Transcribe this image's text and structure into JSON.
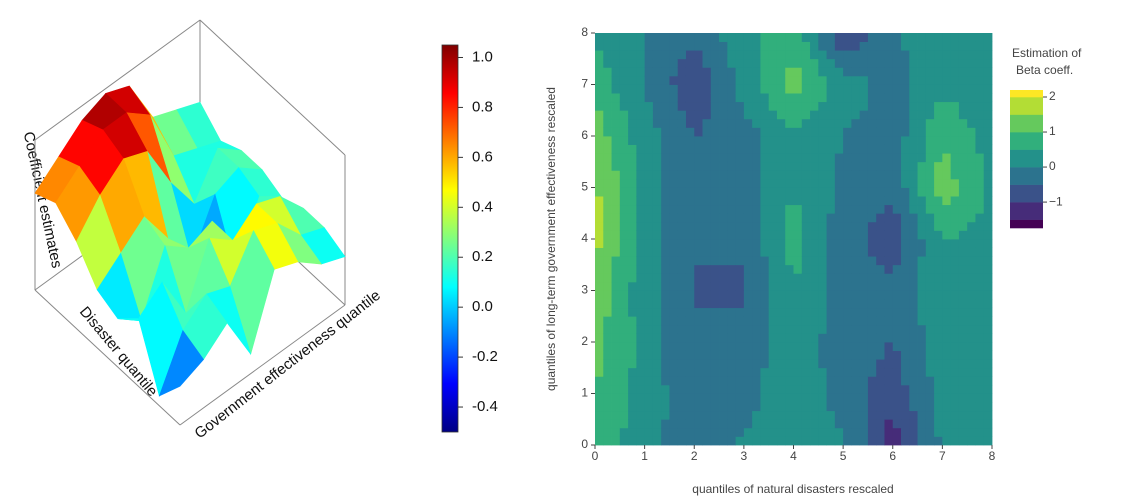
{
  "chart_data": [
    {
      "type": "surface",
      "zlabel": "Coefficient estimates",
      "xlabel": "Disaster quantile",
      "ylabel": "Government effectiveness quantile",
      "colorscale": "jet",
      "z": [
        [
          0.5,
          0.7,
          0.9,
          1.0,
          0.9,
          0.4,
          0.3,
          0.2
        ],
        [
          0.6,
          0.8,
          1.0,
          1.0,
          0.8,
          0.2,
          0.1,
          0.0
        ],
        [
          0.4,
          0.7,
          0.9,
          0.8,
          0.3,
          -0.1,
          0.3,
          0.1
        ],
        [
          0.1,
          0.3,
          0.5,
          0.1,
          -0.3,
          0.2,
          0.3,
          0.1
        ],
        [
          0.0,
          -0.2,
          0.4,
          0.2,
          0.3,
          -0.4,
          0.2,
          0.0
        ],
        [
          0.2,
          0.4,
          -0.1,
          0.5,
          0.3,
          0.5,
          0.4,
          0.1
        ],
        [
          -0.4,
          0.1,
          0.3,
          0.2,
          0.6,
          0.5,
          0.2,
          0.1
        ],
        [
          -0.1,
          0.0,
          0.2,
          -0.3,
          0.4,
          0.3,
          0.1,
          0.0
        ]
      ],
      "colorbar": {
        "lim": [
          -0.5,
          1.05
        ],
        "ticks": [
          {
            "value": 1,
            "label": "1.0"
          },
          0.8,
          0.6,
          0.4,
          0.2,
          {
            "value": 0,
            "label": "0.0"
          },
          -0.2,
          -0.4
        ]
      }
    },
    {
      "type": "contour",
      "xlabel": "quantiles of natural disasters rescaled",
      "ylabel": "quantiles of long-term government effectiveness rescaled",
      "colorscale": "viridis",
      "x": [
        0,
        1,
        2,
        3,
        4,
        5,
        6,
        7,
        8
      ],
      "y": [
        0,
        1,
        2,
        3,
        4,
        5,
        6,
        7,
        8
      ],
      "z": [
        [
          0.8,
          0.2,
          -0.3,
          0.1,
          0.2,
          0.1,
          -1.3,
          0.1,
          0.2
        ],
        [
          1.0,
          0.3,
          -0.4,
          -0.2,
          0.3,
          -0.2,
          -0.8,
          0.2,
          0.3
        ],
        [
          1.2,
          0.3,
          -0.5,
          -0.3,
          0.4,
          -0.3,
          -0.5,
          0.3,
          0.4
        ],
        [
          1.3,
          0.2,
          -0.5,
          -0.6,
          0.5,
          -0.3,
          -0.4,
          0.4,
          0.4
        ],
        [
          1.7,
          0.2,
          -0.5,
          -0.4,
          0.7,
          -0.3,
          -0.8,
          0.5,
          0.3
        ],
        [
          1.6,
          0.3,
          -0.5,
          -0.3,
          0.5,
          -0.1,
          -0.4,
          1.3,
          0.4
        ],
        [
          1.3,
          0.2,
          -0.5,
          -0.2,
          0.4,
          0.0,
          -0.3,
          0.9,
          0.3
        ],
        [
          0.8,
          0.0,
          -0.9,
          0.2,
          1.2,
          0.3,
          -0.2,
          0.4,
          0.1
        ],
        [
          0.4,
          0.0,
          -0.4,
          0.4,
          0.8,
          -1.0,
          0.0,
          0.1,
          0.0
        ]
      ],
      "contours": {
        "start": -1.5,
        "end": 2,
        "size": 0.5
      },
      "xlim": [
        0,
        8
      ],
      "ylim": [
        0,
        8
      ],
      "xticks": [
        0,
        1,
        2,
        3,
        4,
        5,
        6,
        7,
        8
      ],
      "yticks": [
        0,
        1,
        2,
        3,
        4,
        5,
        6,
        7,
        8
      ],
      "colorbar": {
        "title": [
          "Estimation of",
          "Beta coeff."
        ],
        "lim": [
          -1.74,
          2.2
        ],
        "ticks": [
          2,
          1,
          0,
          {
            "value": -1,
            "label": "−1"
          }
        ]
      }
    }
  ]
}
